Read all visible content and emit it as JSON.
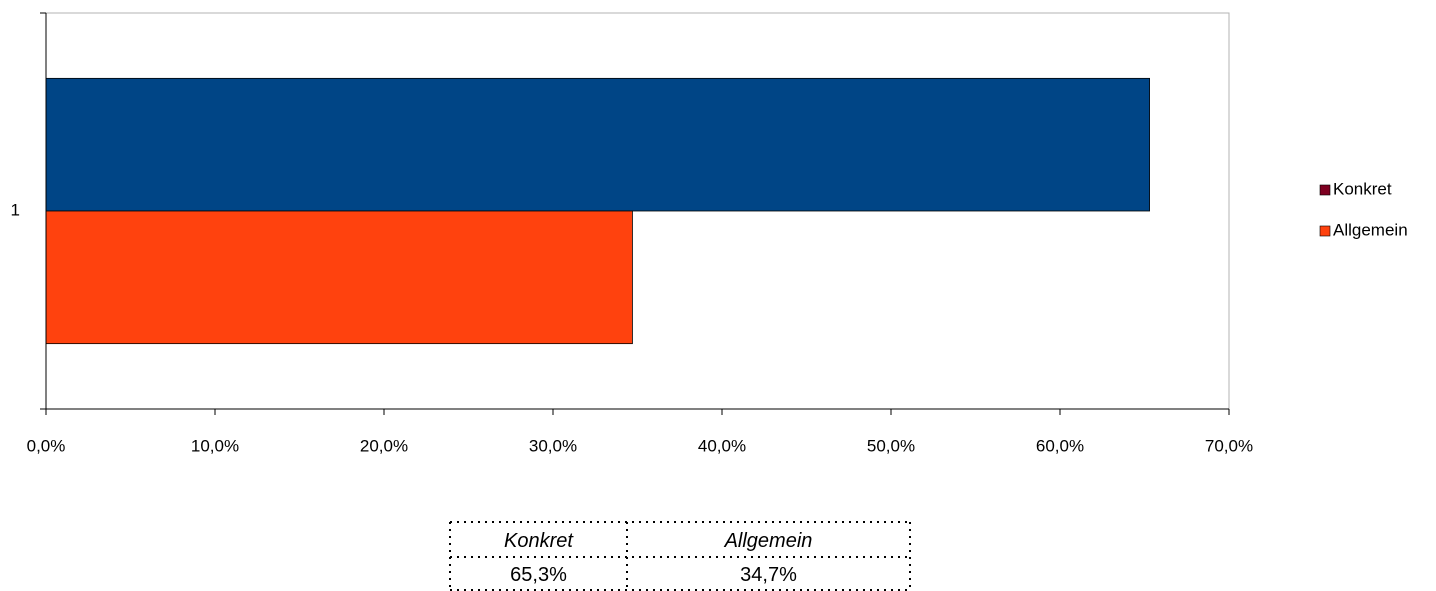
{
  "chart_data": {
    "type": "bar",
    "orientation": "horizontal",
    "categories": [
      "1"
    ],
    "series": [
      {
        "name": "Konkret",
        "color": "#004586",
        "legend_color": "#7e0021",
        "values": [
          65.3
        ],
        "value_labels": [
          "65,3%"
        ]
      },
      {
        "name": "Allgemein",
        "color": "#ff420e",
        "legend_color": "#ff420e",
        "values": [
          34.7
        ],
        "value_labels": [
          "34,7%"
        ]
      }
    ],
    "xlim": [
      0,
      70
    ],
    "xticks": [
      {
        "value": 0,
        "label": "0,0%"
      },
      {
        "value": 10,
        "label": "10,0%"
      },
      {
        "value": 20,
        "label": "20,0%"
      },
      {
        "value": 30,
        "label": "30,0%"
      },
      {
        "value": 40,
        "label": "40,0%"
      },
      {
        "value": 50,
        "label": "50,0%"
      },
      {
        "value": 60,
        "label": "60,0%"
      },
      {
        "value": 70,
        "label": "70,0%"
      }
    ],
    "legend": "right",
    "data_table": true
  }
}
